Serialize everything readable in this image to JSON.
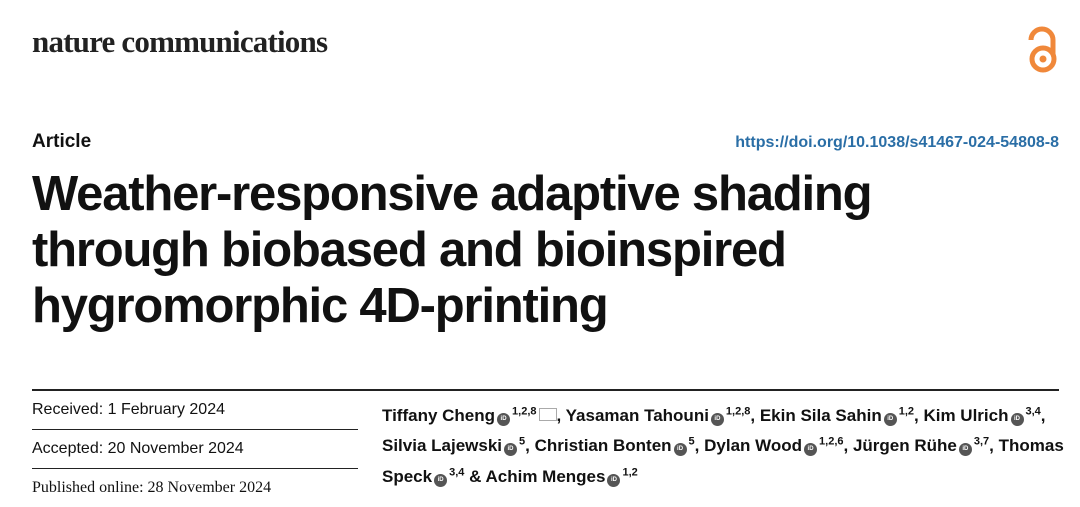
{
  "colors": {
    "accent_bar": "#ef5338",
    "open_access": "#f0883a",
    "doi_link": "#2a6ea6"
  },
  "journal": "nature communications",
  "open_access_icon": "open-access-lock-icon",
  "article_type": "Article",
  "doi": "https://doi.org/10.1038/s41467-024-54808-8",
  "title_lines": [
    "Weather-responsive adaptive shading",
    "through biobased and bioinspired",
    "hygromorphic 4D-printing"
  ],
  "dates": {
    "received": "Received: 1 February 2024",
    "accepted": "Accepted: 20 November 2024",
    "published": "Published online: 28 November 2024"
  },
  "authors": [
    {
      "name": "Tiffany Cheng",
      "aff": "1,2,8",
      "sep": ", ",
      "mail": true
    },
    {
      "name": "Yasaman Tahouni",
      "aff": "1,2,8",
      "sep": ", "
    },
    {
      "name": "Ekin Sila Sahin",
      "aff": "1,2",
      "sep": ", "
    },
    {
      "name": "Kim Ulrich",
      "aff": "3,4",
      "sep": ", "
    },
    {
      "name": "Silvia Lajewski",
      "aff": "5",
      "sep": ", "
    },
    {
      "name": "Christian Bonten",
      "aff": "5",
      "sep": ", "
    },
    {
      "name": "Dylan Wood",
      "aff": "1,2,6",
      "sep": ", "
    },
    {
      "name": "Jürgen Rühe",
      "aff": "3,7",
      "sep": ", "
    },
    {
      "name": "Thomas Speck",
      "aff": "3,4",
      "sep": " & "
    },
    {
      "name": "Achim Menges",
      "aff": "1,2",
      "sep": ""
    }
  ]
}
